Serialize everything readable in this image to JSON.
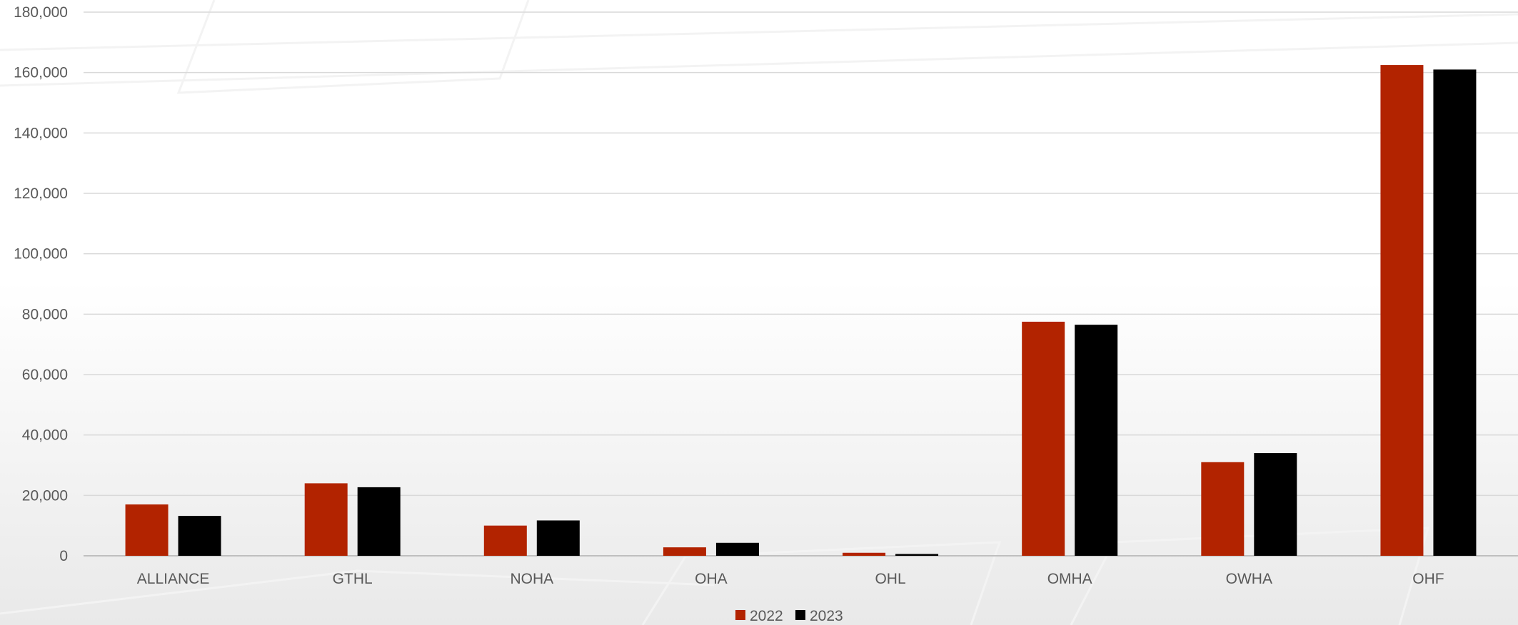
{
  "chart_data": {
    "type": "bar",
    "categories": [
      "ALLIANCE",
      "GTHL",
      "NOHA",
      "OHA",
      "OHL",
      "OMHA",
      "OWHA",
      "OHF"
    ],
    "series": [
      {
        "name": "2022",
        "color": "#B22300",
        "values": [
          17000,
          24000,
          10000,
          2800,
          1000,
          77500,
          31000,
          162500
        ]
      },
      {
        "name": "2023",
        "color": "#000000",
        "values": [
          13200,
          22700,
          11700,
          4300,
          600,
          76500,
          34000,
          161000
        ]
      }
    ],
    "ylim": [
      0,
      180000
    ],
    "yticks": [
      0,
      20000,
      40000,
      60000,
      80000,
      100000,
      120000,
      140000,
      160000,
      180000
    ],
    "ytick_labels": [
      "0",
      "20,000",
      "40,000",
      "60,000",
      "80,000",
      "100,000",
      "120,000",
      "140,000",
      "160,000",
      "180,000"
    ],
    "grid": true,
    "legend_position": "bottom-center",
    "title": "",
    "xlabel": "",
    "ylabel": ""
  }
}
